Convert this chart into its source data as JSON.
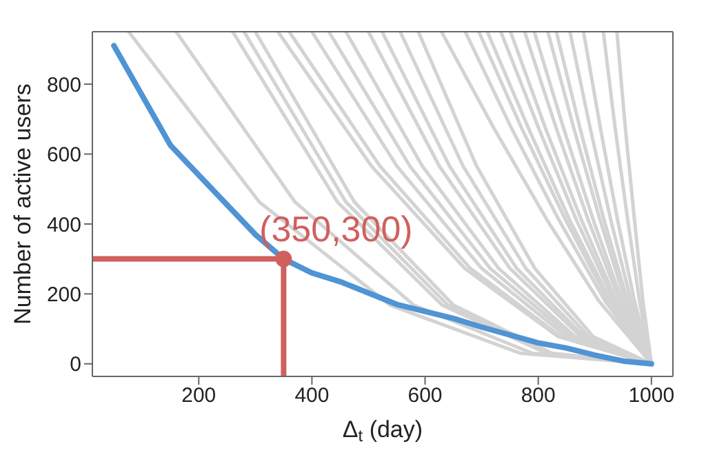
{
  "chart_data": {
    "type": "line",
    "xlabel": "Δ$_{t}$ (day)",
    "ylabel": "Number of active users",
    "xlim": [
      12,
      1038
    ],
    "ylim": [
      -36,
      950
    ],
    "xticks": [
      200,
      400,
      600,
      800,
      1000
    ],
    "yticks": [
      0,
      200,
      400,
      600,
      800
    ],
    "marker": "none",
    "line_style": "solid",
    "annotations": [
      {
        "text": "(350,300)",
        "x": 350,
        "y": 300
      }
    ],
    "series": [
      {
        "color": "#d3d3d3",
        "x": [
          76,
          307,
          538,
          769,
          1000
        ],
        "values": [
          950,
          463,
          168,
          30,
          0
        ]
      },
      {
        "color": "#d3d3d3",
        "x": [
          160,
          370,
          580,
          790,
          1000
        ],
        "values": [
          950,
          463,
          168,
          30,
          0
        ]
      },
      {
        "color": "#d3d3d3",
        "x": [
          260,
          445,
          630,
          815,
          1000
        ],
        "values": [
          950,
          463,
          168,
          30,
          0
        ]
      },
      {
        "color": "#d3d3d3",
        "x": [
          280,
          460,
          640,
          820,
          1000
        ],
        "values": [
          950,
          463,
          168,
          30,
          0
        ]
      },
      {
        "color": "#d3d3d3",
        "x": [
          300,
          475,
          650,
          825,
          1000
        ],
        "values": [
          950,
          463,
          168,
          30,
          0
        ]
      },
      {
        "color": "#d3d3d3",
        "x": [
          340,
          505,
          670,
          835,
          1000
        ],
        "values": [
          950,
          566,
          273,
          78,
          0
        ]
      },
      {
        "color": "#d3d3d3",
        "x": [
          360,
          520,
          680,
          840,
          1000
        ],
        "values": [
          950,
          566,
          273,
          78,
          0
        ]
      },
      {
        "color": "#d3d3d3",
        "x": [
          400,
          550,
          700,
          850,
          1000
        ],
        "values": [
          950,
          566,
          273,
          78,
          0
        ]
      },
      {
        "color": "#d3d3d3",
        "x": [
          430,
          573,
          715,
          858,
          1000
        ],
        "values": [
          950,
          566,
          273,
          78,
          0
        ]
      },
      {
        "color": "#d3d3d3",
        "x": [
          460,
          595,
          730,
          865,
          1000
        ],
        "values": [
          950,
          566,
          273,
          78,
          0
        ]
      },
      {
        "color": "#d3d3d3",
        "x": [
          500,
          625,
          750,
          875,
          1000
        ],
        "values": [
          950,
          566,
          273,
          78,
          0
        ]
      },
      {
        "color": "#d3d3d3",
        "x": [
          524,
          643,
          762,
          881,
          1000
        ],
        "values": [
          950,
          566,
          273,
          78,
          0
        ]
      },
      {
        "color": "#d3d3d3",
        "x": [
          556,
          667,
          778,
          889,
          1000
        ],
        "values": [
          950,
          566,
          273,
          78,
          0
        ]
      },
      {
        "color": "#d3d3d3",
        "x": [
          588,
          691,
          794,
          897,
          1000
        ],
        "values": [
          950,
          566,
          273,
          78,
          0
        ]
      },
      {
        "color": "#d3d3d3",
        "x": [
          629,
          722,
          815,
          907,
          1000
        ],
        "values": [
          950,
          673,
          413,
          180,
          0
        ]
      },
      {
        "color": "#d3d3d3",
        "x": [
          671,
          753,
          836,
          918,
          1000
        ],
        "values": [
          950,
          673,
          413,
          180,
          0
        ]
      },
      {
        "color": "#d3d3d3",
        "x": [
          695,
          771,
          848,
          924,
          1000
        ],
        "values": [
          950,
          673,
          413,
          180,
          0
        ]
      },
      {
        "color": "#d3d3d3",
        "x": [
          710,
          783,
          855,
          928,
          1000
        ],
        "values": [
          950,
          673,
          413,
          180,
          0
        ]
      },
      {
        "color": "#d3d3d3",
        "x": [
          734,
          801,
          867,
          934,
          1000
        ],
        "values": [
          950,
          673,
          413,
          180,
          0
        ]
      },
      {
        "color": "#d3d3d3",
        "x": [
          751,
          813,
          876,
          938,
          1000
        ],
        "values": [
          950,
          673,
          413,
          180,
          0
        ]
      },
      {
        "color": "#d3d3d3",
        "x": [
          776,
          832,
          888,
          944,
          1000
        ],
        "values": [
          950,
          673,
          413,
          180,
          0
        ]
      },
      {
        "color": "#d3d3d3",
        "x": [
          793,
          845,
          897,
          948,
          1000
        ],
        "values": [
          950,
          673,
          413,
          180,
          0
        ]
      },
      {
        "color": "#d3d3d3",
        "x": [
          817,
          863,
          909,
          954,
          1000
        ],
        "values": [
          950,
          673,
          413,
          180,
          0
        ]
      },
      {
        "color": "#d3d3d3",
        "x": [
          832,
          874,
          916,
          958,
          1000
        ],
        "values": [
          950,
          673,
          413,
          180,
          0
        ]
      },
      {
        "color": "#d3d3d3",
        "x": [
          856,
          892,
          928,
          964,
          1000
        ],
        "values": [
          950,
          673,
          413,
          180,
          0
        ]
      },
      {
        "color": "#d3d3d3",
        "x": [
          880,
          910,
          940,
          970,
          1000
        ],
        "values": [
          950,
          673,
          413,
          180,
          0
        ]
      },
      {
        "color": "#d3d3d3",
        "x": [
          915,
          936,
          958,
          979,
          1000
        ],
        "values": [
          950,
          673,
          413,
          180,
          0
        ]
      },
      {
        "color": "#d3d3d3",
        "x": [
          939,
          954,
          970,
          985,
          1000
        ],
        "values": [
          950,
          673,
          413,
          180,
          0
        ]
      },
      {
        "color": "#4f94d4",
        "x": [
          50,
          150,
          200,
          300,
          350,
          400,
          450,
          550,
          650,
          700,
          800,
          850,
          900,
          950,
          1000
        ],
        "values": [
          910,
          625,
          540,
          370,
          300,
          260,
          235,
          170,
          130,
          105,
          60,
          45,
          25,
          8,
          0
        ]
      },
      {
        "color": "#d0605e",
        "x": [
          12,
          350
        ],
        "values": [
          300,
          300
        ]
      },
      {
        "color": "#d0605e",
        "x": [
          350,
          350
        ],
        "values": [
          -36,
          300
        ]
      },
      {
        "type": "scatter",
        "marker": "circle",
        "color": "#d0605e",
        "x": [
          350
        ],
        "values": [
          300
        ]
      }
    ]
  }
}
